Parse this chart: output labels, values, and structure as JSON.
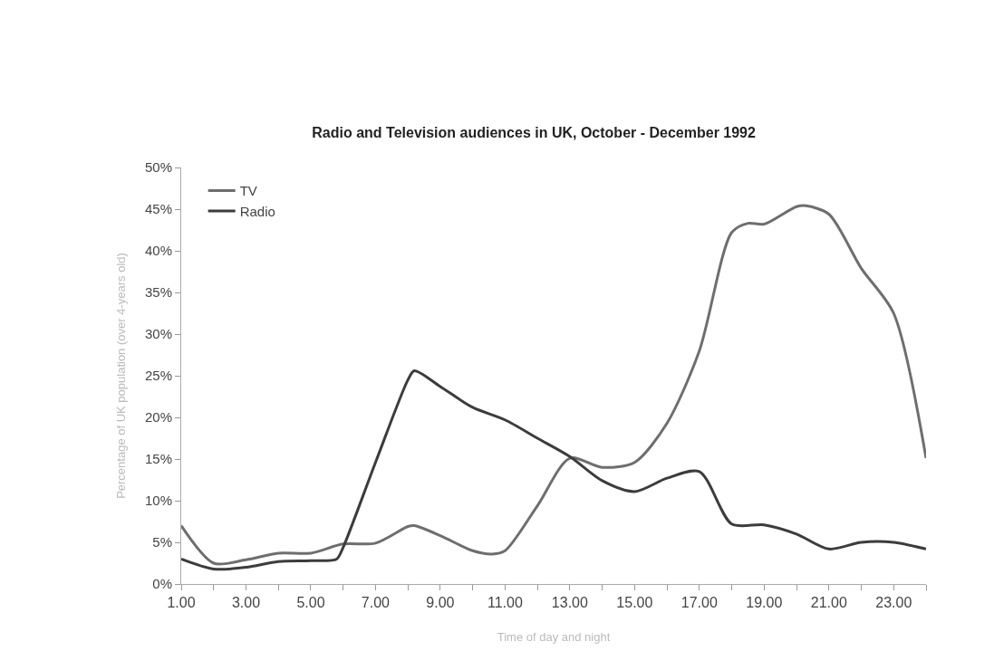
{
  "chart_data": {
    "type": "line",
    "title": "Radio and Television audiences in UK, October - December 1992",
    "xlabel": "Time of day and night",
    "ylabel": "Percentage of UK population (over 4-years old)",
    "series": [
      {
        "name": "TV",
        "color": "#6e6e6e",
        "x": [
          1,
          2,
          3,
          4,
          5,
          6,
          7,
          8,
          8.2,
          9,
          10,
          10.6,
          11,
          12,
          13,
          14,
          15,
          16,
          17,
          18,
          18.5,
          19,
          20,
          20.3,
          21,
          22,
          23,
          24
        ],
        "values": [
          7.0,
          2.5,
          2.9,
          3.7,
          3.7,
          4.8,
          4.9,
          6.9,
          7.0,
          5.8,
          4.0,
          3.6,
          4.0,
          9.4,
          15.1,
          14.0,
          14.6,
          19.3,
          28.0,
          42.2,
          43.3,
          43.2,
          45.3,
          45.4,
          44.4,
          37.9,
          32.5,
          15.1
        ]
      },
      {
        "name": "Radio",
        "color": "#3c3c3c",
        "x": [
          1,
          2,
          3,
          4,
          5,
          5.8,
          6,
          7,
          8,
          8.2,
          9,
          10,
          11,
          12,
          13,
          14,
          15,
          16,
          17,
          18,
          19,
          20,
          21,
          22,
          23,
          24
        ],
        "values": [
          3.0,
          1.8,
          2.0,
          2.7,
          2.8,
          3.0,
          4.4,
          14.6,
          24.5,
          25.6,
          23.7,
          21.2,
          19.7,
          17.5,
          15.3,
          12.4,
          11.1,
          12.7,
          13.5,
          7.2,
          7.1,
          6.0,
          4.2,
          5.0,
          5.0,
          4.2
        ]
      }
    ],
    "xlim": [
      1,
      24
    ],
    "xticks": [
      {
        "value": 1,
        "label": "1.00"
      },
      {
        "value": 2,
        "label": null
      },
      {
        "value": 3,
        "label": "3.00"
      },
      {
        "value": 4,
        "label": null
      },
      {
        "value": 5,
        "label": "5.00"
      },
      {
        "value": 6,
        "label": null
      },
      {
        "value": 7,
        "label": "7.00"
      },
      {
        "value": 8,
        "label": null
      },
      {
        "value": 9,
        "label": "9.00"
      },
      {
        "value": 10,
        "label": null
      },
      {
        "value": 11,
        "label": "11.00"
      },
      {
        "value": 12,
        "label": null
      },
      {
        "value": 13,
        "label": "13.00"
      },
      {
        "value": 14,
        "label": null
      },
      {
        "value": 15,
        "label": "15.00"
      },
      {
        "value": 16,
        "label": null
      },
      {
        "value": 17,
        "label": "17.00"
      },
      {
        "value": 18,
        "label": null
      },
      {
        "value": 19,
        "label": "19.00"
      },
      {
        "value": 20,
        "label": null
      },
      {
        "value": 21,
        "label": "21.00"
      },
      {
        "value": 22,
        "label": null
      },
      {
        "value": 23,
        "label": "23.00"
      },
      {
        "value": 24,
        "label": null
      }
    ],
    "ylim": [
      0,
      50
    ],
    "yticks": [
      {
        "value": 0,
        "label": "0%"
      },
      {
        "value": 5,
        "label": "5%"
      },
      {
        "value": 10,
        "label": "10%"
      },
      {
        "value": 15,
        "label": "15%"
      },
      {
        "value": 20,
        "label": "20%"
      },
      {
        "value": 25,
        "label": "25%"
      },
      {
        "value": 30,
        "label": "30%"
      },
      {
        "value": 35,
        "label": "35%"
      },
      {
        "value": 40,
        "label": "40%"
      },
      {
        "value": 45,
        "label": "45%"
      },
      {
        "value": 50,
        "label": "50%"
      }
    ],
    "grid": false,
    "legend": "top left",
    "marker": "none",
    "line_style": "solid"
  }
}
